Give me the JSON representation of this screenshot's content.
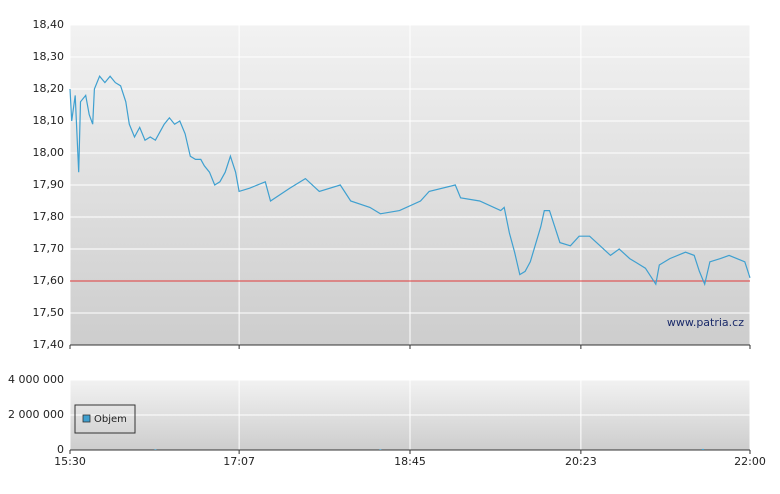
{
  "chart_data": [
    {
      "type": "line",
      "color": "#3fa0d0",
      "watermark": "www.patria.cz",
      "reference_line": 17.6,
      "reference_color": "#e03a3a",
      "grid": true,
      "x": [
        "15:30",
        "15:31",
        "15:33",
        "15:35",
        "15:36",
        "15:39",
        "15:41",
        "15:43",
        "15:44",
        "15:47",
        "15:50",
        "15:53",
        "15:56",
        "15:59",
        "16:02",
        "16:04",
        "16:07",
        "16:10",
        "16:13",
        "16:16",
        "16:19",
        "16:22",
        "16:24",
        "16:27",
        "16:30",
        "16:33",
        "16:36",
        "16:39",
        "16:42",
        "16:45",
        "16:47",
        "16:50",
        "16:53",
        "16:56",
        "16:59",
        "17:02",
        "17:05",
        "17:07",
        "17:13",
        "17:22",
        "17:25",
        "17:36",
        "17:45",
        "17:53",
        "18:05",
        "18:11",
        "18:22",
        "18:28",
        "18:39",
        "18:51",
        "18:56",
        "19:11",
        "19:14",
        "19:25",
        "19:37",
        "19:39",
        "19:42",
        "19:45",
        "19:48",
        "19:51",
        "19:54",
        "20:00",
        "20:02",
        "20:05",
        "20:08",
        "20:11",
        "20:17",
        "20:22",
        "20:28",
        "20:34",
        "20:40",
        "20:45",
        "20:51",
        "21:00",
        "21:06",
        "21:08",
        "21:14",
        "21:23",
        "21:28",
        "21:31",
        "21:34",
        "21:37",
        "21:43",
        "21:48",
        "21:57",
        "22:00"
      ],
      "values": [
        18.2,
        18.1,
        18.18,
        17.94,
        18.16,
        18.18,
        18.12,
        18.09,
        18.2,
        18.24,
        18.22,
        18.24,
        18.22,
        18.21,
        18.16,
        18.09,
        18.05,
        18.08,
        18.04,
        18.05,
        18.04,
        18.07,
        18.09,
        18.11,
        18.09,
        18.1,
        18.06,
        17.99,
        17.98,
        17.98,
        17.96,
        17.94,
        17.9,
        17.91,
        17.94,
        17.99,
        17.94,
        17.88,
        17.89,
        17.91,
        17.85,
        17.89,
        17.92,
        17.88,
        17.9,
        17.85,
        17.83,
        17.81,
        17.82,
        17.85,
        17.88,
        17.9,
        17.86,
        17.85,
        17.82,
        17.83,
        17.75,
        17.69,
        17.62,
        17.63,
        17.66,
        17.77,
        17.82,
        17.82,
        17.77,
        17.72,
        17.71,
        17.74,
        17.74,
        17.71,
        17.68,
        17.7,
        17.67,
        17.64,
        17.59,
        17.65,
        17.67,
        17.69,
        17.68,
        17.63,
        17.59,
        17.66,
        17.67,
        17.68,
        17.66,
        17.61
      ],
      "xlim": [
        "15:30",
        "22:00"
      ],
      "xticks": [
        "15:30",
        "17:07",
        "18:45",
        "20:23",
        "22:00"
      ],
      "ylim": [
        17.4,
        18.4
      ],
      "yticks": [
        {
          "value": 17.4,
          "label": "17,40"
        },
        {
          "value": 17.5,
          "label": "17,50"
        },
        {
          "value": 17.6,
          "label": "17,60"
        },
        {
          "value": 17.7,
          "label": "17,70"
        },
        {
          "value": 17.8,
          "label": "17,80"
        },
        {
          "value": 17.9,
          "label": "17,90"
        },
        {
          "value": 18.0,
          "label": "18,00"
        },
        {
          "value": 18.1,
          "label": "18,10"
        },
        {
          "value": 18.2,
          "label": "18,20"
        },
        {
          "value": 18.3,
          "label": "18,30"
        },
        {
          "value": 18.4,
          "label": "18,40"
        }
      ]
    },
    {
      "type": "bar",
      "grid": true,
      "x": [
        "16:19",
        "18:28",
        "21:33"
      ],
      "series": [
        {
          "name": "Objem",
          "color": "#3fa0d0",
          "values": [
            40000,
            40000,
            60000
          ]
        }
      ],
      "xlim": [
        "15:30",
        "22:00"
      ],
      "xticks": [
        "15:30",
        "17:07",
        "18:45",
        "20:23",
        "22:00"
      ],
      "ylim": [
        0,
        4000000
      ],
      "yticks": [
        0,
        {
          "value": 2000000,
          "label": "2 000 000"
        },
        {
          "value": 4000000,
          "label": "4 000 000"
        }
      ]
    }
  ]
}
